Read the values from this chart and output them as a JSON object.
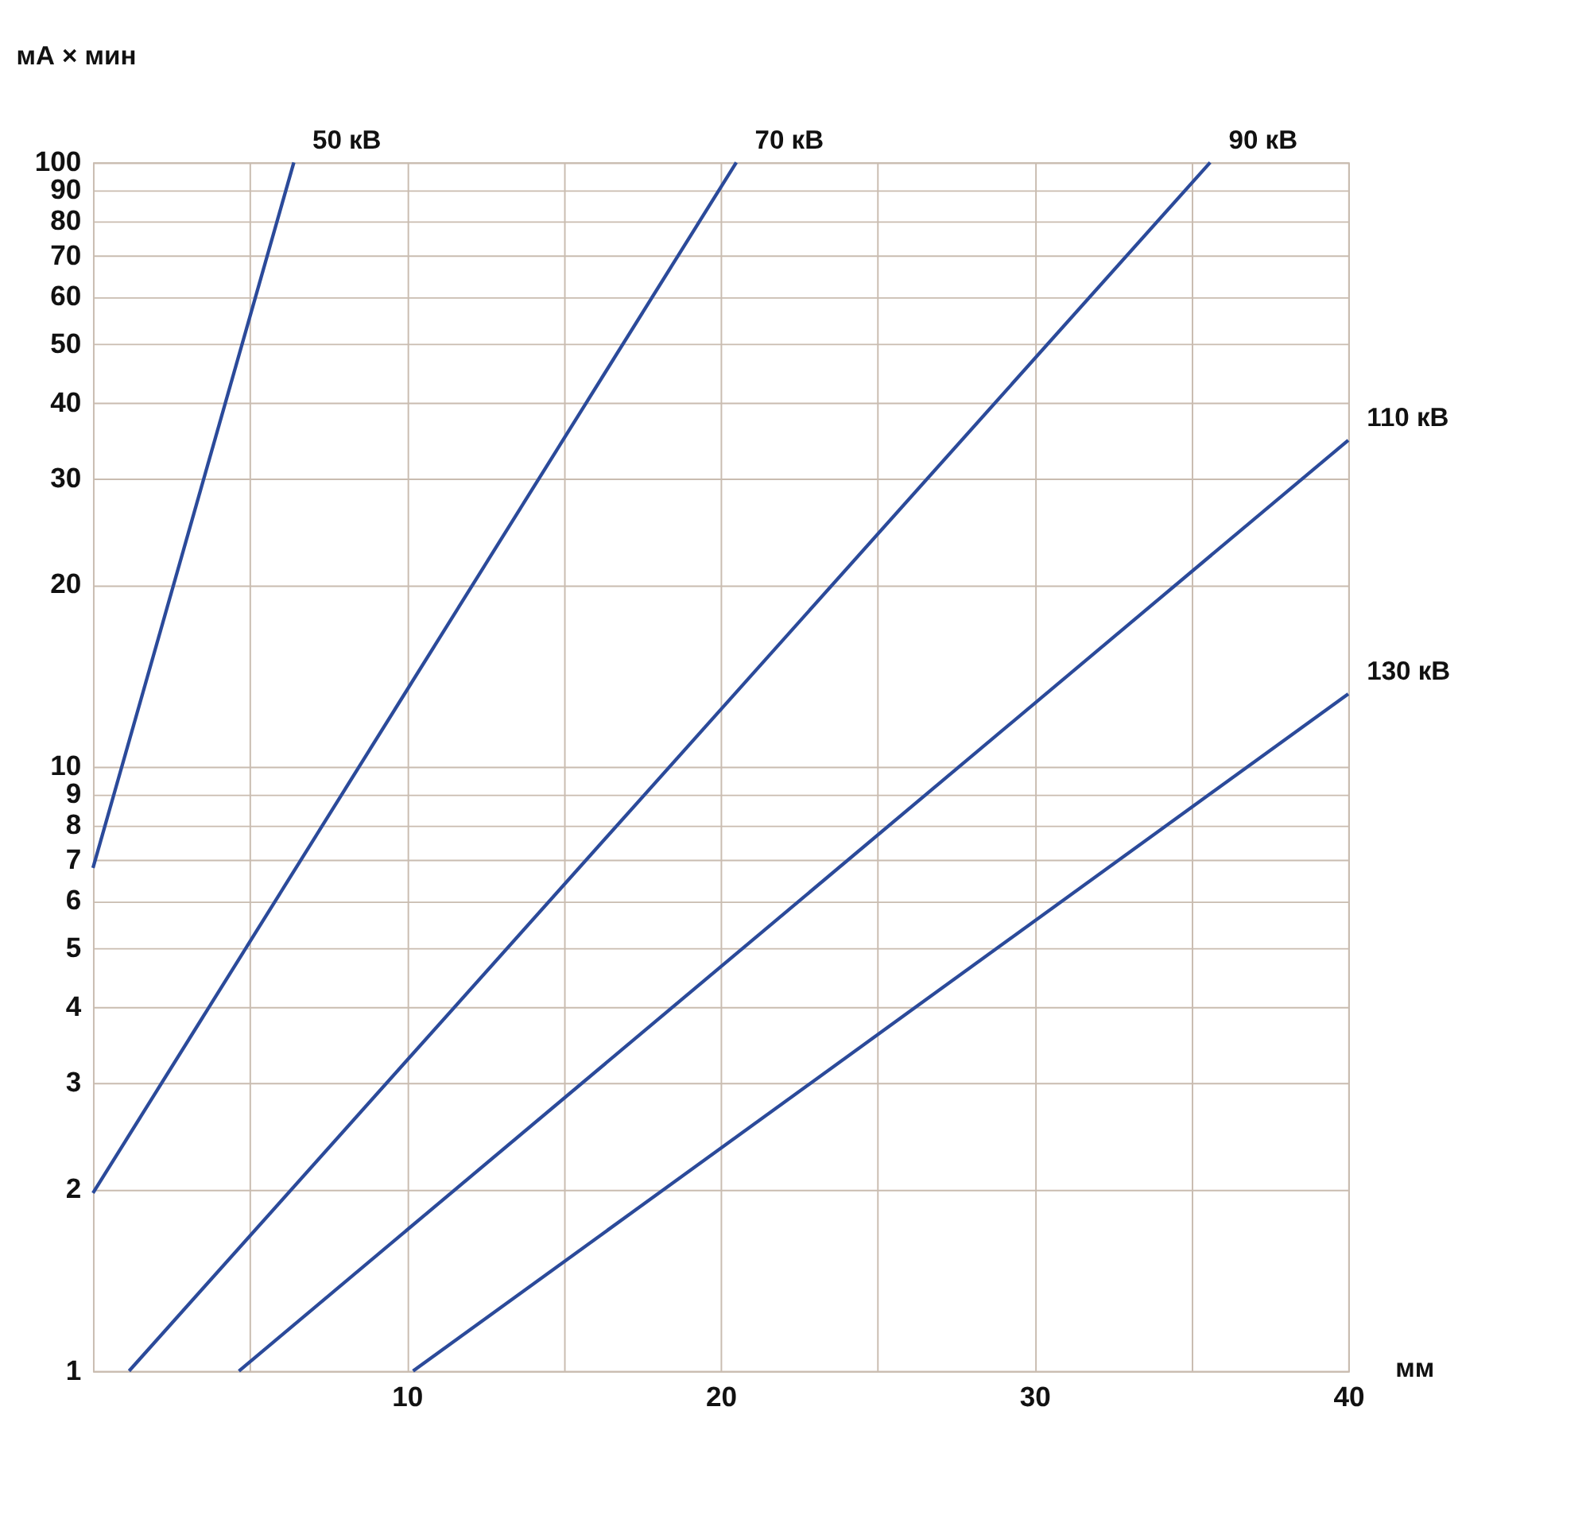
{
  "chart_data": {
    "type": "line",
    "xlabel": "мм",
    "ylabel": "мА × мин",
    "log": "y",
    "grid": true,
    "legend": false,
    "line_style": "solid",
    "marker": "none",
    "xlim": [
      0,
      40
    ],
    "xticks": [
      {
        "value": 5,
        "label": null
      },
      10,
      {
        "value": 15,
        "label": null
      },
      20,
      {
        "value": 25,
        "label": null
      },
      30,
      {
        "value": 35,
        "label": null
      },
      40
    ],
    "ylim": [
      1,
      100
    ],
    "yticks": [
      1,
      2,
      3,
      4,
      5,
      6,
      7,
      8,
      9,
      10,
      20,
      30,
      40,
      50,
      60,
      70,
      80,
      90,
      100
    ],
    "series": [
      {
        "name": "50 кВ",
        "color": "#2b4a9a",
        "x": [
          0,
          6.4
        ],
        "values": [
          6.8,
          100
        ]
      },
      {
        "name": "70 кВ",
        "color": "#2b4a9a",
        "x": [
          0,
          20.5
        ],
        "values": [
          1.97,
          100
        ]
      },
      {
        "name": "90 кВ",
        "color": "#2b4a9a",
        "x": [
          1.15,
          35.6
        ],
        "values": [
          1,
          100
        ]
      },
      {
        "name": "110 кВ",
        "color": "#2b4a9a",
        "x": [
          4.65,
          40
        ],
        "values": [
          1,
          34.7
        ]
      },
      {
        "name": "130 кВ",
        "color": "#2b4a9a",
        "x": [
          10.2,
          40
        ],
        "values": [
          1,
          13.2
        ]
      }
    ]
  }
}
